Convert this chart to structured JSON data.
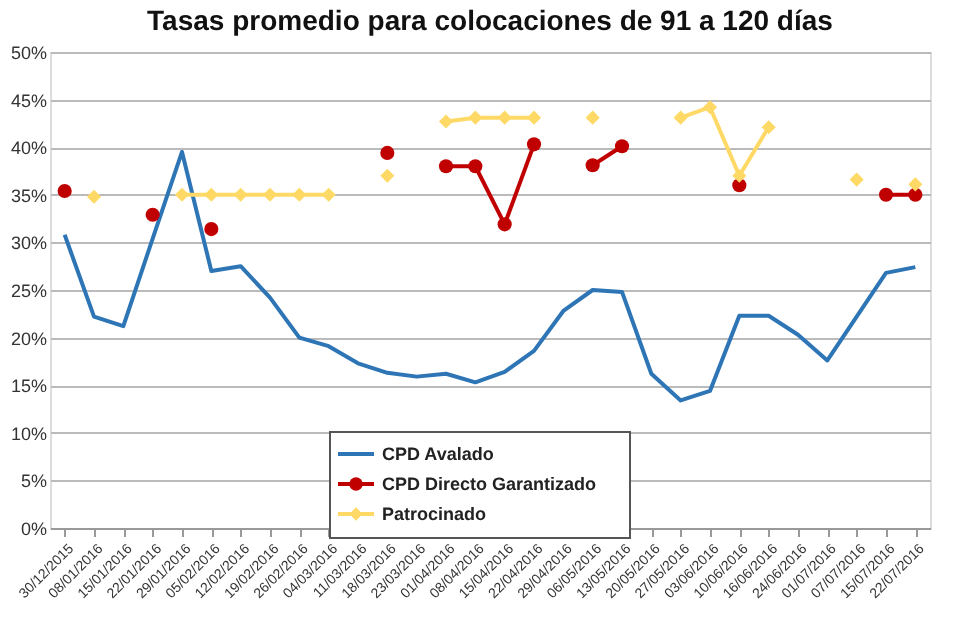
{
  "chart_data": {
    "type": "line",
    "title": "Tasas promedio para colocaciones de 91 a 120 días",
    "categories": [
      "30/12/2015",
      "08/01/2016",
      "15/01/2016",
      "22/01/2016",
      "29/01/2016",
      "05/02/2016",
      "12/02/2016",
      "19/02/2016",
      "26/02/2016",
      "04/03/2016",
      "11/03/2016",
      "18/03/2016",
      "23/03/2016",
      "01/04/2016",
      "08/04/2016",
      "15/04/2016",
      "22/04/2016",
      "29/04/2016",
      "06/05/2016",
      "13/05/2016",
      "20/05/2016",
      "27/05/2016",
      "03/06/2016",
      "10/06/2016",
      "16/06/2016",
      "24/06/2016",
      "01/07/2016",
      "07/07/2016",
      "15/07/2016",
      "22/07/2016"
    ],
    "series": [
      {
        "name": "CPD Avalado",
        "color": "#2e75b6",
        "marker": "none",
        "values": [
          30.8,
          22.2,
          21.2,
          30.4,
          39.5,
          27.0,
          27.5,
          24.2,
          20.0,
          19.1,
          17.3,
          16.3,
          15.9,
          16.2,
          15.3,
          16.4,
          18.6,
          22.8,
          25.0,
          24.8,
          16.2,
          13.4,
          14.4,
          22.3,
          22.3,
          20.3,
          17.6,
          22.2,
          26.8,
          27.4
        ]
      },
      {
        "name": "CPD Directo Garantizado",
        "color": "#c00000",
        "marker": "circle",
        "values": [
          35.4,
          null,
          null,
          32.9,
          null,
          31.4,
          null,
          null,
          null,
          null,
          null,
          39.4,
          null,
          38.0,
          38.0,
          31.9,
          40.3,
          null,
          38.1,
          40.1,
          null,
          null,
          null,
          36.0,
          null,
          null,
          null,
          null,
          35.0,
          35.0
        ]
      },
      {
        "name": "Patrocinado",
        "color": "#ffd966",
        "marker": "diamond",
        "values": [
          null,
          34.8,
          null,
          null,
          35.0,
          35.0,
          35.0,
          35.0,
          35.0,
          35.0,
          null,
          37.0,
          null,
          42.7,
          43.1,
          43.1,
          43.1,
          null,
          43.1,
          null,
          null,
          43.1,
          44.2,
          37.0,
          42.1,
          null,
          null,
          36.6,
          null,
          36.1
        ]
      }
    ],
    "ylim": [
      0,
      50
    ],
    "yticks": [
      {
        "value": 0,
        "label": "0%"
      },
      {
        "value": 5,
        "label": "5%"
      },
      {
        "value": 10,
        "label": "10%"
      },
      {
        "value": 15,
        "label": "15%"
      },
      {
        "value": 20,
        "label": "20%"
      },
      {
        "value": 25,
        "label": "25%"
      },
      {
        "value": 30,
        "label": "30%"
      },
      {
        "value": 35,
        "label": "35%"
      },
      {
        "value": 40,
        "label": "40%"
      },
      {
        "value": 45,
        "label": "45%"
      },
      {
        "value": 50,
        "label": "50%"
      }
    ],
    "grid": "y",
    "legend": "bottom",
    "line_style": "solid"
  }
}
